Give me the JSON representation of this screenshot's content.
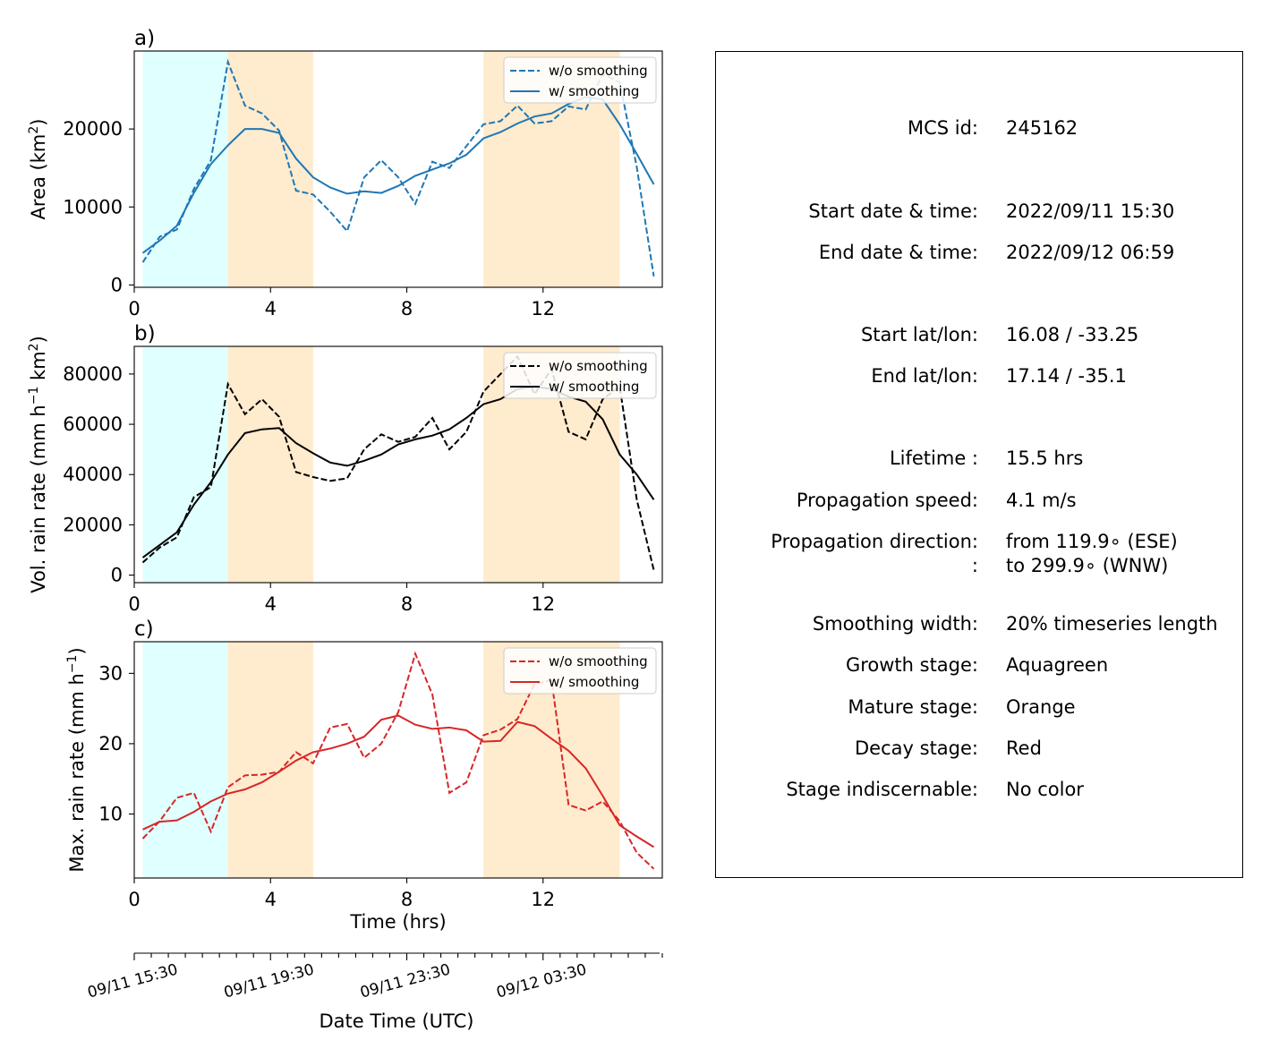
{
  "chart_data": [
    {
      "type": "line",
      "panel_label": "a)",
      "ylabel": "Area  (km",
      "ylabel_sup": "2",
      "ylabel_tail": ")",
      "xlim": [
        0,
        15.5
      ],
      "ylim": [
        -300,
        30000
      ],
      "xticks": [
        0,
        4,
        8,
        12
      ],
      "xtick_labels": [
        "0",
        "4",
        "8",
        "12"
      ],
      "yticks": [
        0,
        10000,
        20000
      ],
      "ytick_labels": [
        "0",
        "10000",
        "20000"
      ],
      "color": "#1f77b4",
      "legend_position": "upper right",
      "x": [
        0.25,
        0.75,
        1.25,
        1.75,
        2.25,
        2.75,
        3.25,
        3.75,
        4.25,
        4.75,
        5.25,
        5.75,
        6.25,
        6.75,
        7.25,
        7.75,
        8.25,
        8.75,
        9.25,
        9.75,
        10.25,
        10.75,
        11.25,
        11.75,
        12.25,
        12.75,
        13.25,
        13.75,
        14.25,
        14.75,
        15.25
      ],
      "series": [
        {
          "name": "w/o smoothing",
          "style": "dashed",
          "values": [
            2900,
            6200,
            7100,
            12300,
            16000,
            28600,
            23000,
            22000,
            19800,
            12100,
            11600,
            9400,
            6900,
            13800,
            16000,
            13800,
            10400,
            15800,
            15000,
            17800,
            20600,
            21000,
            23000,
            20700,
            21000,
            22900,
            22500,
            27000,
            26000,
            15100,
            1100
          ]
        },
        {
          "name": "w/ smoothing",
          "style": "solid",
          "values": [
            4100,
            5700,
            7600,
            11800,
            15500,
            17900,
            20000,
            20000,
            19500,
            16200,
            13800,
            12500,
            11700,
            12000,
            11800,
            12700,
            14000,
            14800,
            15600,
            16700,
            18800,
            19600,
            20700,
            21600,
            22000,
            23200,
            24100,
            23800,
            20600,
            16800,
            12900
          ]
        }
      ],
      "shaded": [
        {
          "stage": "growth",
          "x0": 0.25,
          "x1": 2.75,
          "color": "#e0ffff"
        },
        {
          "stage": "mature",
          "x0": 2.75,
          "x1": 5.25,
          "color": "#ffebcd"
        },
        {
          "stage": "mature",
          "x0": 10.25,
          "x1": 14.25,
          "color": "#ffebcd"
        }
      ]
    },
    {
      "type": "line",
      "panel_label": "b)",
      "ylabel": "Vol. rain rate (mm h",
      "ylabel_sup": "−1",
      "ylabel_tail": " km",
      "ylabel_sup2": "2",
      "ylabel_tail2": ")",
      "xlim": [
        0,
        15.5
      ],
      "ylim": [
        -3000,
        91000
      ],
      "xticks": [
        0,
        4,
        8,
        12
      ],
      "xtick_labels": [
        "0",
        "4",
        "8",
        "12"
      ],
      "yticks": [
        0,
        20000,
        40000,
        60000,
        80000
      ],
      "ytick_labels": [
        "0",
        "20000",
        "40000",
        "60000",
        "80000"
      ],
      "color": "#000000",
      "legend_position": "upper right",
      "x": [
        0.25,
        0.75,
        1.25,
        1.75,
        2.25,
        2.75,
        3.25,
        3.75,
        4.25,
        4.75,
        5.25,
        5.75,
        6.25,
        6.75,
        7.25,
        7.75,
        8.25,
        8.75,
        9.25,
        9.75,
        10.25,
        10.75,
        11.25,
        11.75,
        12.25,
        12.75,
        13.25,
        13.75,
        14.25,
        14.75,
        15.25
      ],
      "series": [
        {
          "name": "w/o smoothing",
          "style": "dashed",
          "values": [
            5000,
            11000,
            15000,
            31000,
            35000,
            76000,
            64000,
            70000,
            63000,
            41000,
            39000,
            37500,
            38500,
            50000,
            56000,
            53000,
            55000,
            62500,
            50000,
            57000,
            73000,
            80000,
            87000,
            72000,
            82000,
            57000,
            54000,
            70000,
            75000,
            30000,
            2000
          ]
        },
        {
          "name": "w/ smoothing",
          "style": "solid",
          "values": [
            7000,
            12000,
            17000,
            28000,
            37000,
            48000,
            56500,
            58000,
            58500,
            52500,
            48500,
            44800,
            43500,
            45500,
            48000,
            52000,
            54000,
            55500,
            58000,
            62500,
            68000,
            70000,
            74000,
            75000,
            74000,
            71000,
            69000,
            62000,
            48000,
            40000,
            30000
          ]
        }
      ],
      "shaded": [
        {
          "stage": "growth",
          "x0": 0.25,
          "x1": 2.75,
          "color": "#e0ffff"
        },
        {
          "stage": "mature",
          "x0": 2.75,
          "x1": 5.25,
          "color": "#ffebcd"
        },
        {
          "stage": "mature",
          "x0": 10.25,
          "x1": 14.25,
          "color": "#ffebcd"
        }
      ]
    },
    {
      "type": "line",
      "panel_label": "c)",
      "ylabel": "Max. rain rate  (mm h",
      "ylabel_sup": "−1",
      "ylabel_tail": ")",
      "xlabel": "Time (hrs)",
      "xlim": [
        0,
        15.5
      ],
      "ylim": [
        0.9,
        34.5
      ],
      "xticks": [
        0,
        4,
        8,
        12
      ],
      "xtick_labels": [
        "0",
        "4",
        "8",
        "12"
      ],
      "yticks": [
        10,
        20,
        30
      ],
      "ytick_labels": [
        "10",
        "20",
        "30"
      ],
      "color": "#d62728",
      "legend_position": "upper right",
      "x": [
        0.25,
        0.75,
        1.25,
        1.75,
        2.25,
        2.75,
        3.25,
        3.75,
        4.25,
        4.75,
        5.25,
        5.75,
        6.25,
        6.75,
        7.25,
        7.75,
        8.25,
        8.75,
        9.25,
        9.75,
        10.25,
        10.75,
        11.25,
        11.75,
        12.25,
        12.75,
        13.25,
        13.75,
        14.25,
        14.75,
        15.25
      ],
      "series": [
        {
          "name": "w/o smoothing",
          "style": "dashed",
          "values": [
            6.5,
            9.0,
            12.3,
            13.0,
            7.5,
            13.8,
            15.5,
            15.6,
            16.0,
            18.8,
            17.2,
            22.3,
            22.8,
            18.0,
            20.0,
            24.5,
            32.8,
            27.0,
            13.0,
            14.5,
            21.2,
            22.0,
            23.5,
            28.5,
            29.0,
            11.3,
            10.5,
            11.8,
            9.0,
            4.5,
            2.2
          ]
        },
        {
          "name": "w/ smoothing",
          "style": "solid",
          "values": [
            7.8,
            8.9,
            9.1,
            10.3,
            11.8,
            12.9,
            13.5,
            14.5,
            16.0,
            17.6,
            18.8,
            19.3,
            20.0,
            21.0,
            23.4,
            24.0,
            22.7,
            22.1,
            22.3,
            21.9,
            20.3,
            20.4,
            23.1,
            22.5,
            20.7,
            19.0,
            16.5,
            12.6,
            8.4,
            6.8,
            5.3
          ]
        }
      ],
      "shaded": [
        {
          "stage": "growth",
          "x0": 0.25,
          "x1": 2.75,
          "color": "#e0ffff"
        },
        {
          "stage": "mature",
          "x0": 2.75,
          "x1": 5.25,
          "color": "#ffebcd"
        },
        {
          "stage": "mature",
          "x0": 10.25,
          "x1": 14.25,
          "color": "#ffebcd"
        }
      ]
    }
  ],
  "datetime_axis": {
    "xlabel": "Date Time (UTC)",
    "tick_labels": [
      "09/11 15:30",
      "09/11 19:30",
      "09/11 23:30",
      "09/12 03:30"
    ],
    "major_ticks": [
      0,
      4,
      8,
      12
    ],
    "minor_step": 0.5,
    "xlim": [
      0,
      15.5
    ]
  },
  "info": {
    "mcs_id_label": "MCS id:",
    "mcs_id": "245162",
    "start_dt_label": "Start date & time:",
    "start_dt": "2022/09/11 15:30",
    "end_dt_label": "End date & time:",
    "end_dt": "2022/09/12 06:59",
    "start_latlon_label": "Start lat/lon:",
    "start_latlon": "16.08 / -33.25",
    "end_latlon_label": "End lat/lon:",
    "end_latlon": "17.14 / -35.1",
    "lifetime_label": "Lifetime :",
    "lifetime": "15.5 hrs",
    "speed_label": "Propagation speed:",
    "speed": "4.1 m/s",
    "direction_label": "Propagation direction:",
    "direction_from": "from 119.9∘ (ESE)",
    "direction_cont_label": ":",
    "direction_to": "to   299.9∘ (WNW)",
    "smoothing_label": "Smoothing width:",
    "smoothing": "20% timeseries length",
    "growth_label": "Growth stage:",
    "growth": "Aquagreen",
    "mature_label": "Mature stage:",
    "mature": "Orange",
    "decay_label": "Decay stage:",
    "decay": "Red",
    "indisc_label": "Stage indiscernable:",
    "indisc": "No color"
  }
}
